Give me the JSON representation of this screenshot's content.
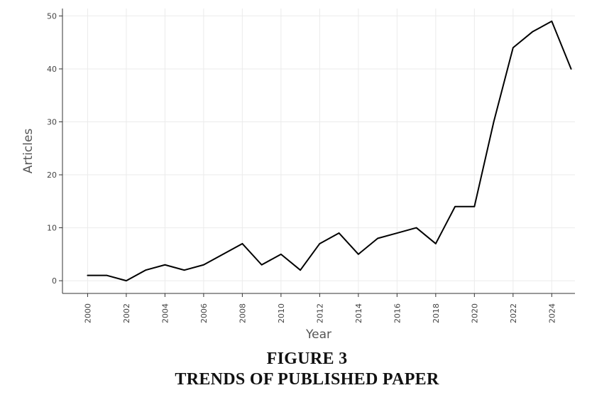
{
  "caption": {
    "figure_number": "FIGURE 3",
    "figure_title": "TRENDS OF PUBLISHED PAPER"
  },
  "colors": {
    "line": "#000000",
    "grid": "#ebebeb",
    "axis": "#333333"
  },
  "chart_data": {
    "type": "line",
    "title": "",
    "xlabel": "Year",
    "ylabel": "Articles",
    "x": [
      2000,
      2001,
      2002,
      2003,
      2004,
      2005,
      2006,
      2007,
      2008,
      2009,
      2010,
      2011,
      2012,
      2013,
      2014,
      2015,
      2016,
      2017,
      2018,
      2019,
      2020,
      2021,
      2022,
      2023,
      2024,
      2025
    ],
    "series": [
      {
        "values": [
          1,
          1,
          0,
          2,
          3,
          2,
          3,
          5,
          7,
          3,
          5,
          2,
          7,
          9,
          5,
          8,
          9,
          10,
          7,
          14,
          14,
          30,
          44,
          47,
          49,
          40
        ]
      }
    ],
    "xlim": [
      1998.7,
      2025.2
    ],
    "ylim": [
      -2.4,
      51.4
    ],
    "x_ticks": [
      "2000",
      "2002",
      "2004",
      "2006",
      "2008",
      "2010",
      "2012",
      "2014",
      "2016",
      "2018",
      "2020",
      "2022",
      "2024"
    ],
    "y_ticks": [
      "0",
      "10",
      "20",
      "30",
      "40",
      "50"
    ],
    "grid": true,
    "legend": "none"
  }
}
